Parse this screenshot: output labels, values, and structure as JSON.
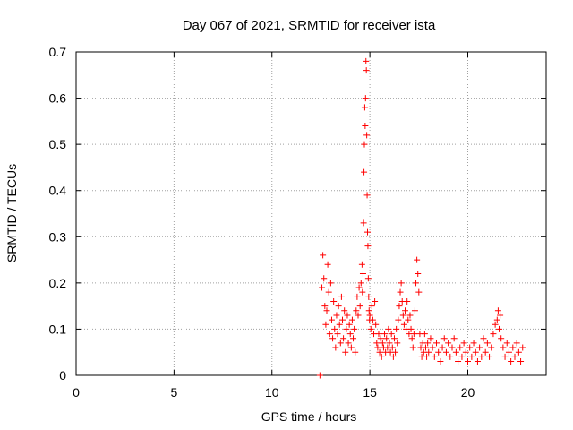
{
  "chart_data": {
    "type": "scatter",
    "title": "Day 067 of 2021, SRMTID for receiver ista",
    "xlabel": "GPS time / hours",
    "ylabel": "SRMTID / TECUs",
    "xlim": [
      0,
      24
    ],
    "ylim": [
      0,
      0.7
    ],
    "xticks": [
      0,
      5,
      10,
      15,
      20
    ],
    "xtick_labels": [
      "0",
      "5",
      "10",
      "15",
      "20"
    ],
    "yticks": [
      0,
      0.1,
      0.2,
      0.3,
      0.4,
      0.5,
      0.6,
      0.7
    ],
    "ytick_labels": [
      "0",
      "0.1",
      "0.2",
      "0.3",
      "0.4",
      "0.5",
      "0.6",
      "0.7"
    ],
    "grid": true,
    "marker": "plus",
    "color": "#ff0000",
    "series": [
      {
        "name": "SRMTID",
        "points": [
          [
            12.45,
            0.0
          ],
          [
            12.55,
            0.19
          ],
          [
            12.6,
            0.26
          ],
          [
            12.65,
            0.21
          ],
          [
            12.7,
            0.15
          ],
          [
            12.75,
            0.11
          ],
          [
            12.8,
            0.14
          ],
          [
            12.85,
            0.24
          ],
          [
            12.9,
            0.18
          ],
          [
            12.95,
            0.09
          ],
          [
            13.0,
            0.2
          ],
          [
            13.05,
            0.12
          ],
          [
            13.1,
            0.08
          ],
          [
            13.15,
            0.16
          ],
          [
            13.2,
            0.1
          ],
          [
            13.25,
            0.06
          ],
          [
            13.3,
            0.13
          ],
          [
            13.35,
            0.09
          ],
          [
            13.4,
            0.15
          ],
          [
            13.45,
            0.11
          ],
          [
            13.5,
            0.07
          ],
          [
            13.55,
            0.17
          ],
          [
            13.6,
            0.12
          ],
          [
            13.65,
            0.08
          ],
          [
            13.7,
            0.14
          ],
          [
            13.75,
            0.05
          ],
          [
            13.8,
            0.1
          ],
          [
            13.85,
            0.13
          ],
          [
            13.9,
            0.07
          ],
          [
            13.95,
            0.11
          ],
          [
            14.0,
            0.09
          ],
          [
            14.05,
            0.06
          ],
          [
            14.1,
            0.12
          ],
          [
            14.15,
            0.08
          ],
          [
            14.2,
            0.1
          ],
          [
            14.25,
            0.05
          ],
          [
            14.3,
            0.14
          ],
          [
            14.35,
            0.17
          ],
          [
            14.4,
            0.13
          ],
          [
            14.45,
            0.19
          ],
          [
            14.5,
            0.15
          ],
          [
            14.55,
            0.2
          ],
          [
            14.6,
            0.24
          ],
          [
            14.62,
            0.18
          ],
          [
            14.65,
            0.22
          ],
          [
            14.68,
            0.33
          ],
          [
            14.7,
            0.44
          ],
          [
            14.72,
            0.5
          ],
          [
            14.74,
            0.58
          ],
          [
            14.76,
            0.54
          ],
          [
            14.78,
            0.6
          ],
          [
            14.8,
            0.68
          ],
          [
            14.82,
            0.66
          ],
          [
            14.84,
            0.52
          ],
          [
            14.86,
            0.39
          ],
          [
            14.88,
            0.31
          ],
          [
            14.9,
            0.28
          ],
          [
            14.92,
            0.21
          ],
          [
            14.94,
            0.17
          ],
          [
            14.96,
            0.14
          ],
          [
            14.98,
            0.12
          ],
          [
            15.0,
            0.13
          ],
          [
            15.05,
            0.1
          ],
          [
            15.1,
            0.15
          ],
          [
            15.15,
            0.12
          ],
          [
            15.2,
            0.09
          ],
          [
            15.25,
            0.16
          ],
          [
            15.3,
            0.11
          ],
          [
            15.35,
            0.07
          ],
          [
            15.4,
            0.06
          ],
          [
            15.45,
            0.09
          ],
          [
            15.5,
            0.05
          ],
          [
            15.55,
            0.08
          ],
          [
            15.6,
            0.04
          ],
          [
            15.65,
            0.07
          ],
          [
            15.7,
            0.06
          ],
          [
            15.75,
            0.09
          ],
          [
            15.8,
            0.05
          ],
          [
            15.85,
            0.08
          ],
          [
            15.9,
            0.06
          ],
          [
            15.95,
            0.1
          ],
          [
            16.0,
            0.07
          ],
          [
            16.05,
            0.05
          ],
          [
            16.1,
            0.09
          ],
          [
            16.15,
            0.06
          ],
          [
            16.2,
            0.04
          ],
          [
            16.25,
            0.08
          ],
          [
            16.3,
            0.05
          ],
          [
            16.35,
            0.1
          ],
          [
            16.4,
            0.07
          ],
          [
            16.45,
            0.12
          ],
          [
            16.5,
            0.15
          ],
          [
            16.55,
            0.18
          ],
          [
            16.6,
            0.2
          ],
          [
            16.65,
            0.16
          ],
          [
            16.7,
            0.13
          ],
          [
            16.75,
            0.11
          ],
          [
            16.8,
            0.14
          ],
          [
            16.85,
            0.1
          ],
          [
            16.9,
            0.16
          ],
          [
            16.95,
            0.12
          ],
          [
            17.0,
            0.09
          ],
          [
            17.05,
            0.13
          ],
          [
            17.1,
            0.1
          ],
          [
            17.15,
            0.08
          ],
          [
            17.2,
            0.06
          ],
          [
            17.25,
            0.09
          ],
          [
            17.3,
            0.14
          ],
          [
            17.35,
            0.2
          ],
          [
            17.4,
            0.25
          ],
          [
            17.45,
            0.22
          ],
          [
            17.5,
            0.18
          ],
          [
            17.55,
            0.09
          ],
          [
            17.6,
            0.06
          ],
          [
            17.65,
            0.04
          ],
          [
            17.7,
            0.07
          ],
          [
            17.75,
            0.05
          ],
          [
            17.8,
            0.09
          ],
          [
            17.85,
            0.06
          ],
          [
            17.9,
            0.04
          ],
          [
            17.95,
            0.07
          ],
          [
            18.0,
            0.05
          ],
          [
            18.1,
            0.08
          ],
          [
            18.2,
            0.06
          ],
          [
            18.3,
            0.04
          ],
          [
            18.4,
            0.07
          ],
          [
            18.5,
            0.05
          ],
          [
            18.6,
            0.03
          ],
          [
            18.7,
            0.06
          ],
          [
            18.8,
            0.08
          ],
          [
            18.9,
            0.05
          ],
          [
            19.0,
            0.07
          ],
          [
            19.1,
            0.04
          ],
          [
            19.2,
            0.06
          ],
          [
            19.3,
            0.08
          ],
          [
            19.4,
            0.05
          ],
          [
            19.5,
            0.03
          ],
          [
            19.6,
            0.06
          ],
          [
            19.7,
            0.04
          ],
          [
            19.8,
            0.07
          ],
          [
            19.9,
            0.05
          ],
          [
            20.0,
            0.03
          ],
          [
            20.1,
            0.06
          ],
          [
            20.2,
            0.04
          ],
          [
            20.3,
            0.07
          ],
          [
            20.4,
            0.05
          ],
          [
            20.5,
            0.03
          ],
          [
            20.6,
            0.06
          ],
          [
            20.7,
            0.04
          ],
          [
            20.8,
            0.08
          ],
          [
            20.9,
            0.05
          ],
          [
            21.0,
            0.07
          ],
          [
            21.1,
            0.04
          ],
          [
            21.2,
            0.06
          ],
          [
            21.3,
            0.09
          ],
          [
            21.4,
            0.11
          ],
          [
            21.5,
            0.12
          ],
          [
            21.55,
            0.14
          ],
          [
            21.6,
            0.1
          ],
          [
            21.65,
            0.13
          ],
          [
            21.7,
            0.08
          ],
          [
            21.8,
            0.06
          ],
          [
            21.9,
            0.04
          ],
          [
            22.0,
            0.07
          ],
          [
            22.1,
            0.05
          ],
          [
            22.2,
            0.03
          ],
          [
            22.3,
            0.06
          ],
          [
            22.4,
            0.04
          ],
          [
            22.5,
            0.07
          ],
          [
            22.6,
            0.05
          ],
          [
            22.7,
            0.03
          ],
          [
            22.8,
            0.06
          ]
        ]
      }
    ]
  }
}
